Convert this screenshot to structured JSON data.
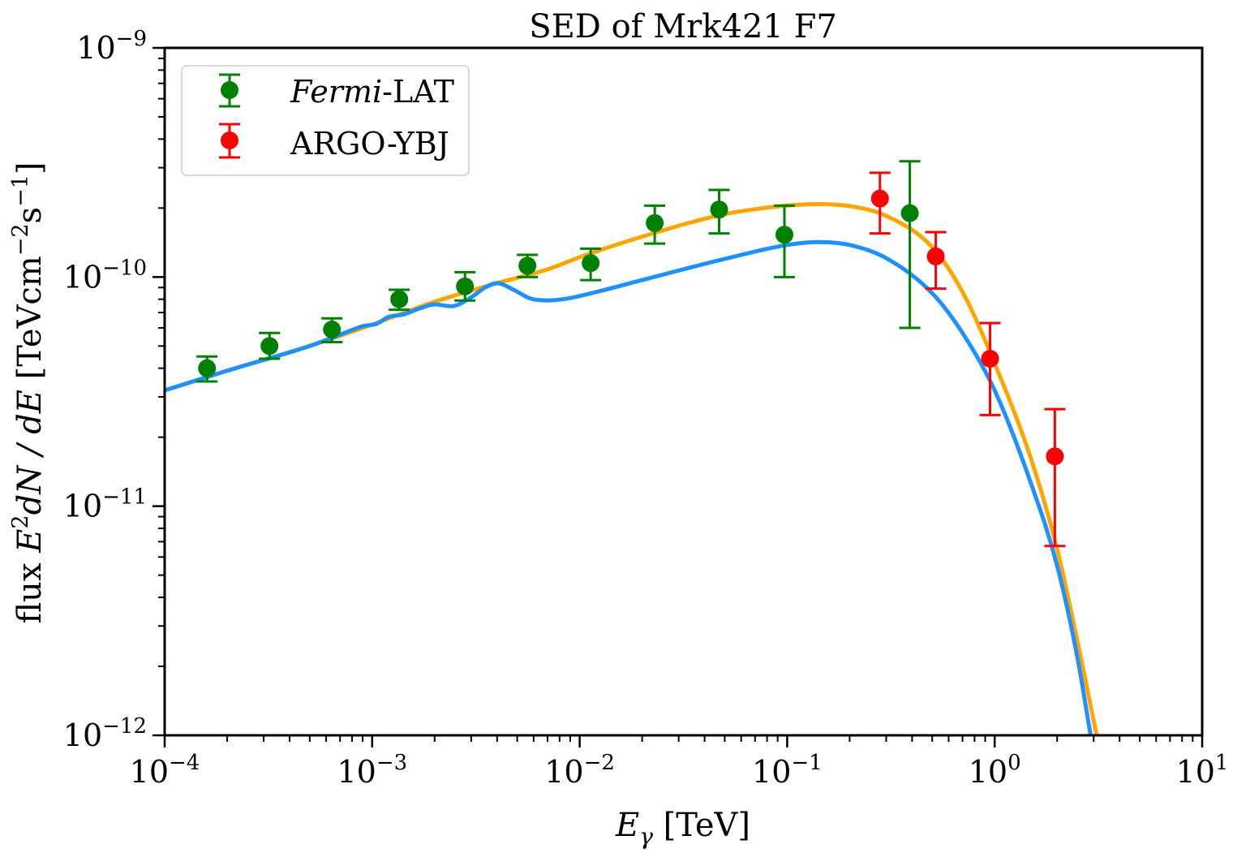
{
  "chart_data": {
    "type": "scatter",
    "title": "SED of Mrk421 F7",
    "xlabel": {
      "symbol": "E",
      "sub": "γ",
      "unit": "[TeV]"
    },
    "ylabel": {
      "prefix": "flux ",
      "main": "E",
      "sup1": "2",
      "rest": "dN / dE",
      "unit_open": " [TeVcm",
      "sup2": "−2",
      "unit_mid": "s",
      "sup3": "−1",
      "unit_close": "]"
    },
    "xscale": "log",
    "yscale": "log",
    "xlim": [
      0.0001,
      10
    ],
    "ylim": [
      1e-12,
      1e-09
    ],
    "x_ticks": [
      {
        "base": "10",
        "exp": "−4",
        "value": 0.0001
      },
      {
        "base": "10",
        "exp": "−3",
        "value": 0.001
      },
      {
        "base": "10",
        "exp": "−2",
        "value": 0.01
      },
      {
        "base": "10",
        "exp": "−1",
        "value": 0.1
      },
      {
        "base": "10",
        "exp": "0",
        "value": 1
      },
      {
        "base": "10",
        "exp": "1",
        "value": 10
      }
    ],
    "y_ticks": [
      {
        "base": "10",
        "exp": "−12",
        "value": 1e-12
      },
      {
        "base": "10",
        "exp": "−11",
        "value": 1e-11
      },
      {
        "base": "10",
        "exp": "−10",
        "value": 1e-10
      },
      {
        "base": "10",
        "exp": "−9",
        "value": 1e-09
      }
    ],
    "legend": {
      "placement": "top-left",
      "entries": [
        {
          "label_italic": "Fermi",
          "label_rest": "-LAT",
          "color": "#008000"
        },
        {
          "label_italic": "",
          "label_rest": "ARGO-YBJ",
          "color": "#ff0000"
        }
      ]
    },
    "series": [
      {
        "name": "Fermi-LAT",
        "color": "#008000",
        "points": [
          {
            "x": 0.00016,
            "y": 4e-11,
            "lo": 3.5e-11,
            "hi": 4.5e-11
          },
          {
            "x": 0.00032,
            "y": 5e-11,
            "lo": 4.4e-11,
            "hi": 5.7e-11
          },
          {
            "x": 0.00064,
            "y": 5.9e-11,
            "lo": 5.2e-11,
            "hi": 6.6e-11
          },
          {
            "x": 0.00135,
            "y": 8e-11,
            "lo": 7.2e-11,
            "hi": 8.8e-11
          },
          {
            "x": 0.0028,
            "y": 9.1e-11,
            "lo": 7.9e-11,
            "hi": 1.05e-10
          },
          {
            "x": 0.0056,
            "y": 1.12e-10,
            "lo": 1e-10,
            "hi": 1.25e-10
          },
          {
            "x": 0.0113,
            "y": 1.15e-10,
            "lo": 9.7e-11,
            "hi": 1.33e-10
          },
          {
            "x": 0.023,
            "y": 1.72e-10,
            "lo": 1.4e-10,
            "hi": 2.05e-10
          },
          {
            "x": 0.047,
            "y": 1.97e-10,
            "lo": 1.55e-10,
            "hi": 2.4e-10
          },
          {
            "x": 0.097,
            "y": 1.53e-10,
            "lo": 1e-10,
            "hi": 2.05e-10
          },
          {
            "x": 0.39,
            "y": 1.9e-10,
            "lo": 6e-11,
            "hi": 3.2e-10
          }
        ]
      },
      {
        "name": "ARGO-YBJ",
        "color": "#ff0000",
        "points": [
          {
            "x": 0.28,
            "y": 2.2e-10,
            "lo": 1.55e-10,
            "hi": 2.85e-10
          },
          {
            "x": 0.52,
            "y": 1.23e-10,
            "lo": 8.9e-11,
            "hi": 1.57e-10
          },
          {
            "x": 0.95,
            "y": 4.4e-11,
            "lo": 2.5e-11,
            "hi": 6.3e-11
          },
          {
            "x": 1.95,
            "y": 1.65e-11,
            "lo": 6.7e-12,
            "hi": 2.65e-11
          }
        ]
      }
    ],
    "curves": [
      {
        "name": "model-orange",
        "color": "#ffa500",
        "points": [
          [
            0.0001,
            3.2e-11
          ],
          [
            0.0002,
            3.9e-11
          ],
          [
            0.0005,
            5e-11
          ],
          [
            0.001,
            6.2e-11
          ],
          [
            0.002,
            7.8e-11
          ],
          [
            0.004,
            9.4e-11
          ],
          [
            0.007,
            1.08e-10
          ],
          [
            0.01,
            1.22e-10
          ],
          [
            0.02,
            1.5e-10
          ],
          [
            0.05,
            1.88e-10
          ],
          [
            0.1,
            2.05e-10
          ],
          [
            0.14,
            2.08e-10
          ],
          [
            0.2,
            2.04e-10
          ],
          [
            0.3,
            1.85e-10
          ],
          [
            0.5,
            1.35e-10
          ],
          [
            0.7,
            8.6e-11
          ],
          [
            1.0,
            4.2e-11
          ],
          [
            1.5,
            1.6e-11
          ],
          [
            2.0,
            6.5e-12
          ],
          [
            2.5,
            2.6e-12
          ],
          [
            3.1,
            1e-12
          ]
        ]
      },
      {
        "name": "model-blue",
        "color": "#1e90ff",
        "points": [
          [
            0.0001,
            3.2e-11
          ],
          [
            0.0002,
            3.9e-11
          ],
          [
            0.0005,
            5e-11
          ],
          [
            0.0007,
            5.6e-11
          ],
          [
            0.0009,
            6.1e-11
          ],
          [
            0.00105,
            6.25e-11
          ],
          [
            0.0012,
            6.7e-11
          ],
          [
            0.0014,
            6.85e-11
          ],
          [
            0.0017,
            7.3e-11
          ],
          [
            0.002,
            7.6e-11
          ],
          [
            0.0024,
            7.45e-11
          ],
          [
            0.003,
            8.15e-11
          ],
          [
            0.0035,
            9e-11
          ],
          [
            0.004,
            9.4e-11
          ],
          [
            0.0048,
            8.8e-11
          ],
          [
            0.0058,
            8.05e-11
          ],
          [
            0.007,
            7.9e-11
          ],
          [
            0.009,
            8.1e-11
          ],
          [
            0.012,
            8.6e-11
          ],
          [
            0.02,
            9.7e-11
          ],
          [
            0.05,
            1.2e-10
          ],
          [
            0.1,
            1.38e-10
          ],
          [
            0.14,
            1.42e-10
          ],
          [
            0.2,
            1.38e-10
          ],
          [
            0.3,
            1.21e-10
          ],
          [
            0.5,
            8.5e-11
          ],
          [
            0.7,
            5.7e-11
          ],
          [
            1.0,
            3.2e-11
          ],
          [
            1.5,
            1.25e-11
          ],
          [
            2.0,
            5.5e-12
          ],
          [
            2.5,
            2.2e-12
          ],
          [
            2.9,
            1e-12
          ]
        ]
      }
    ]
  }
}
